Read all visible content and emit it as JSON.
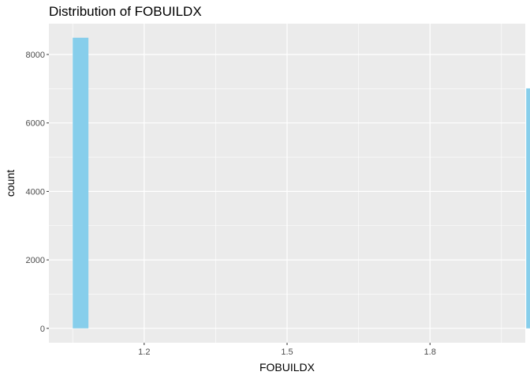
{
  "chart_data": {
    "type": "bar",
    "title": "Distribution of FOBUILDX",
    "xlabel": "FOBUILDX",
    "ylabel": "count",
    "xlim": [
      1.0,
      2.0
    ],
    "ylim": [
      -420,
      8900
    ],
    "x_ticks": [
      1.2,
      1.5,
      1.8
    ],
    "x_tick_labels": [
      "1.2",
      "1.5",
      "1.8"
    ],
    "y_ticks": [
      0,
      2000,
      4000,
      6000,
      8000
    ],
    "y_tick_labels": [
      "0",
      "2000",
      "4000",
      "6000",
      "8000"
    ],
    "grid": true,
    "bar_fill": "#87CEEB",
    "panel_background": "#EBEBEB",
    "bars": [
      {
        "xmin": 1.05,
        "xmax": 1.083,
        "value": 8490
      },
      {
        "xmin": 2.002,
        "xmax": 2.035,
        "value": 7010
      }
    ]
  }
}
